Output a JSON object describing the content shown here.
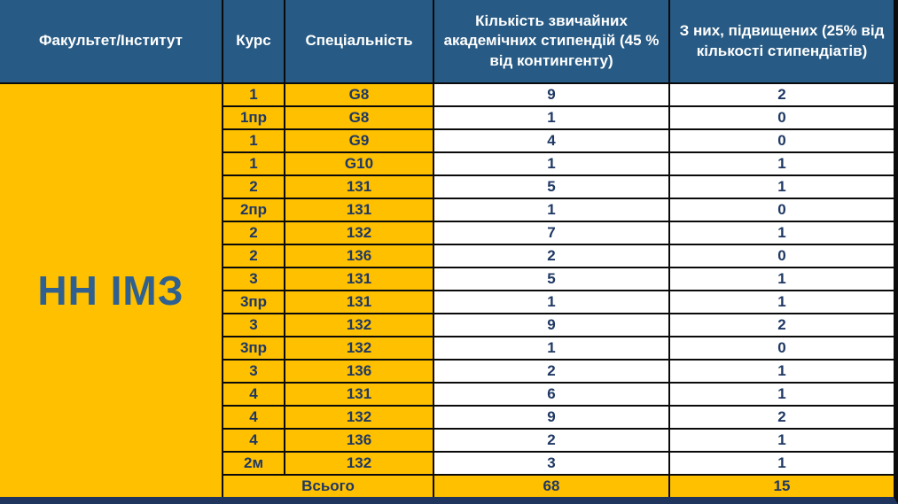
{
  "chart_data": {
    "type": "table",
    "columns": [
      "Факультет/Інститут",
      "Курс",
      "Спеціальність",
      "Кількість звичайних академічних стипендій (45 % від контингенту)",
      "З них, підвищених (25% від кількості стипендіатів)"
    ],
    "faculty": "НН ІМЗ",
    "rows": [
      {
        "course": "1",
        "specialty": "G8",
        "regular": "9",
        "increased": "2"
      },
      {
        "course": "1пр",
        "specialty": "G8",
        "regular": "1",
        "increased": "0"
      },
      {
        "course": "1",
        "specialty": "G9",
        "regular": "4",
        "increased": "0"
      },
      {
        "course": "1",
        "specialty": "G10",
        "regular": "1",
        "increased": "1"
      },
      {
        "course": "2",
        "specialty": "131",
        "regular": "5",
        "increased": "1"
      },
      {
        "course": "2пр",
        "specialty": "131",
        "regular": "1",
        "increased": "0"
      },
      {
        "course": "2",
        "specialty": "132",
        "regular": "7",
        "increased": "1"
      },
      {
        "course": "2",
        "specialty": "136",
        "regular": "2",
        "increased": "0"
      },
      {
        "course": "3",
        "specialty": "131",
        "regular": "5",
        "increased": "1"
      },
      {
        "course": "3пр",
        "specialty": "131",
        "regular": "1",
        "increased": "1"
      },
      {
        "course": "3",
        "specialty": "132",
        "regular": "9",
        "increased": "2"
      },
      {
        "course": "3пр",
        "specialty": "132",
        "regular": "1",
        "increased": "0"
      },
      {
        "course": "3",
        "specialty": "136",
        "regular": "2",
        "increased": "1"
      },
      {
        "course": "4",
        "specialty": "131",
        "regular": "6",
        "increased": "1"
      },
      {
        "course": "4",
        "specialty": "132",
        "regular": "9",
        "increased": "2"
      },
      {
        "course": "4",
        "specialty": "136",
        "regular": "2",
        "increased": "1"
      },
      {
        "course": "2м",
        "specialty": "132",
        "regular": "3",
        "increased": "1"
      }
    ],
    "footer": {
      "label": "Всього",
      "regular": "68",
      "increased": "15"
    }
  },
  "colors": {
    "header_bg": "#275a84",
    "accent_yellow": "#ffc000",
    "value_text": "#1f3864",
    "faculty_text": "#2f6090",
    "grid_line": "#0a0a0a",
    "bottom_border": "#20355e"
  }
}
